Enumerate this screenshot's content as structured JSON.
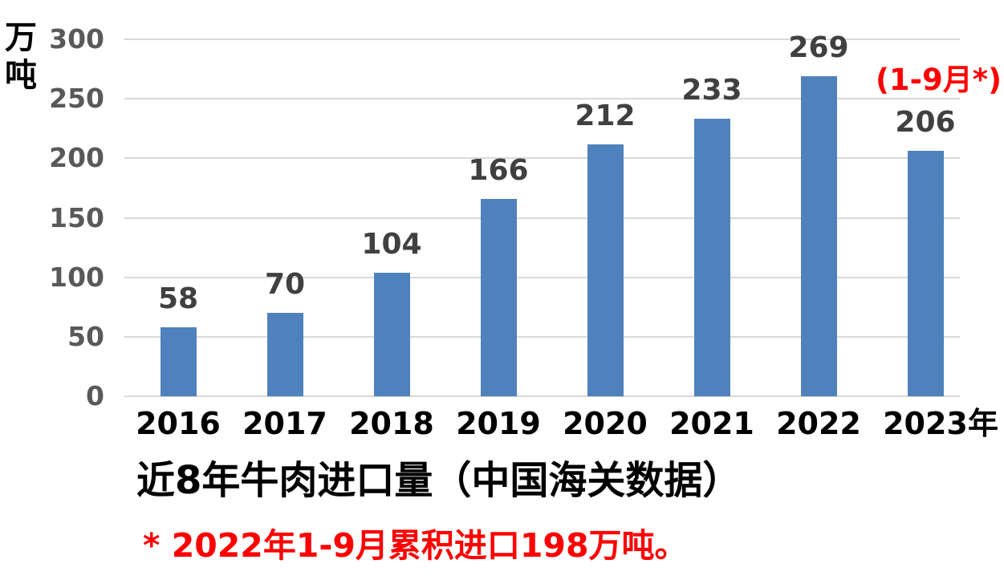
{
  "chart_data": {
    "type": "bar",
    "title": "近8年牛肉进口量（中国海关数据）",
    "ylabel": "万吨",
    "x_axis_suffix": "年",
    "categories": [
      "2016",
      "2017",
      "2018",
      "2019",
      "2020",
      "2021",
      "2022",
      "2023"
    ],
    "values": [
      58,
      70,
      104,
      166,
      212,
      233,
      269,
      206
    ],
    "y_ticks": [
      0,
      50,
      100,
      150,
      200,
      250,
      300
    ],
    "ylim": [
      0,
      300
    ],
    "legend": "none",
    "grid": "horizontal",
    "annotations": {
      "last_bar_note": "(1-9月*)",
      "footnote": "* 2022年1-9月累积进口198万吨。"
    },
    "colors": {
      "bar": "#4F81BD",
      "value_label": "#404040",
      "y_tick_label": "#595959",
      "x_tick_label": "#000000",
      "gridline": "#D9D9D9",
      "annotation": "#FF0000",
      "footnote": "#FF0000",
      "title": "#000000"
    }
  }
}
